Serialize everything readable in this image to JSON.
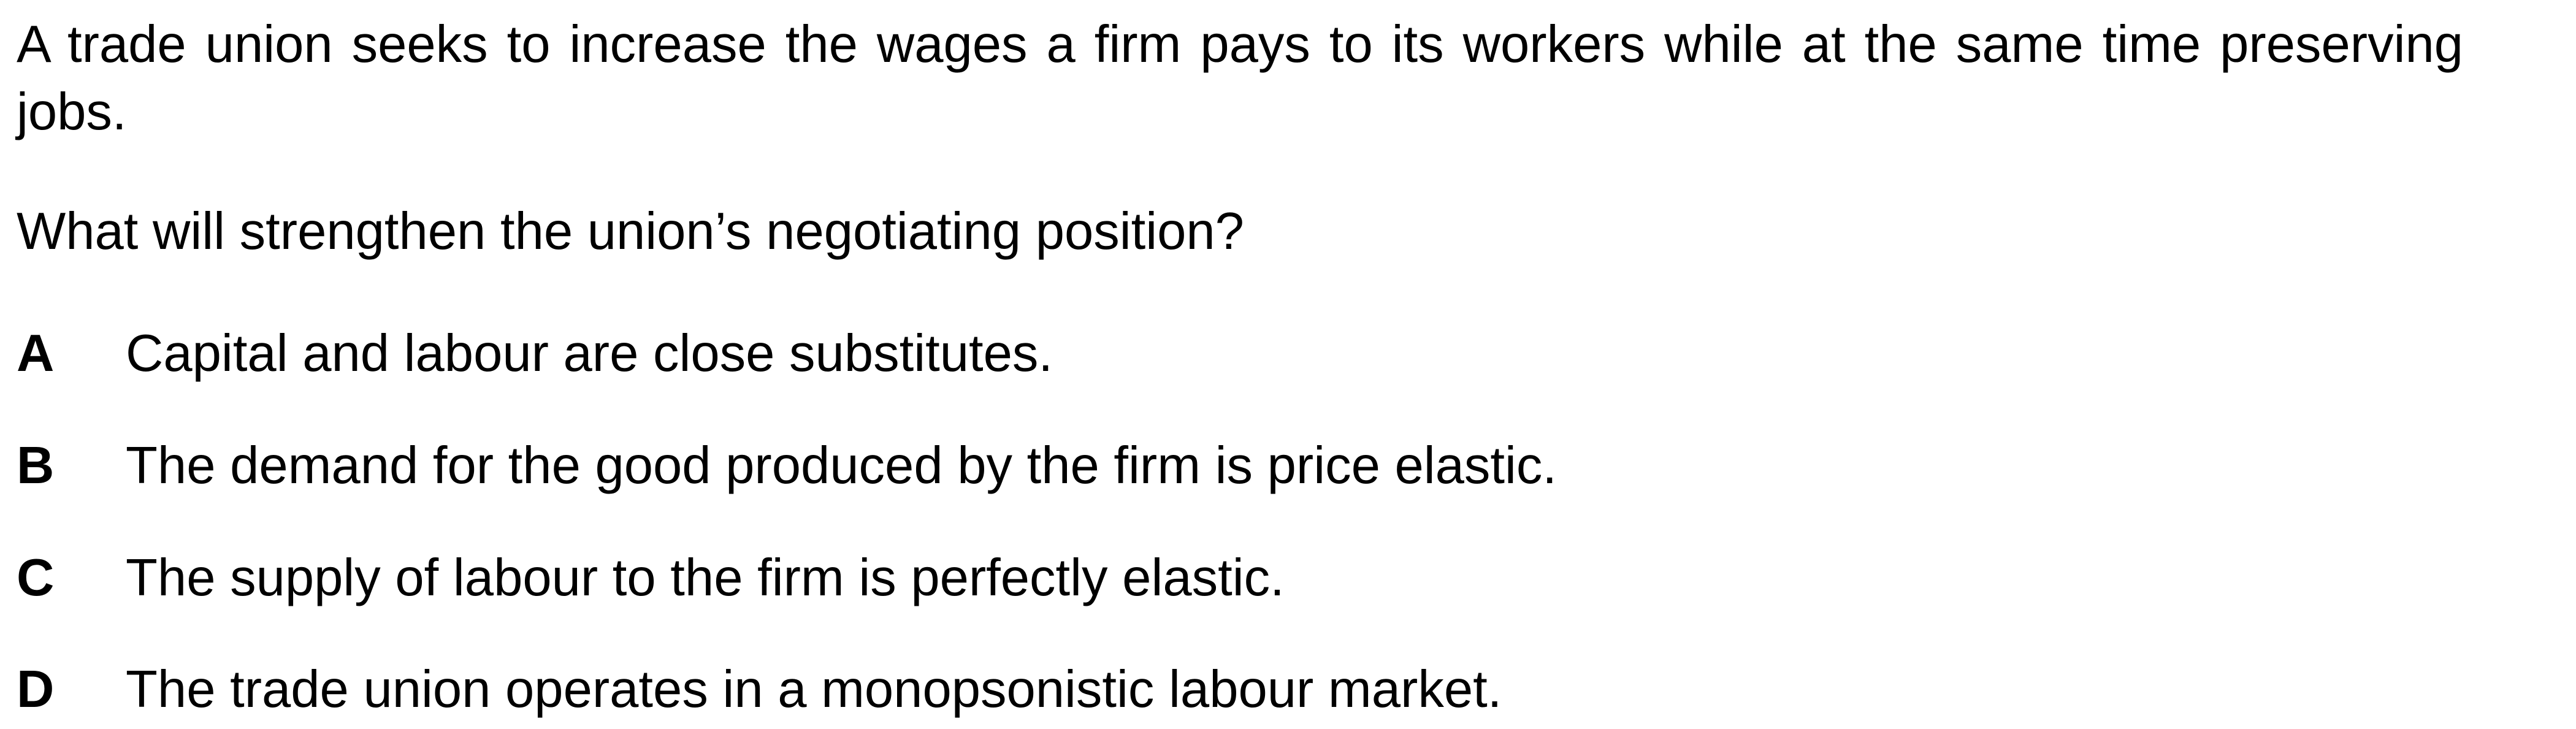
{
  "question": {
    "stem": "A trade union seeks to increase the wages a firm pays to its workers while at the same time preserving jobs.",
    "prompt": "What will strengthen the union’s negotiating position?",
    "options": [
      {
        "letter": "A",
        "text": "Capital and labour are close substitutes."
      },
      {
        "letter": "B",
        "text": "The demand for the good produced by the firm is price elastic."
      },
      {
        "letter": "C",
        "text": "The supply of labour to the firm is perfectly elastic."
      },
      {
        "letter": "D",
        "text": "The trade union operates in a monopsonistic labour market."
      }
    ]
  }
}
